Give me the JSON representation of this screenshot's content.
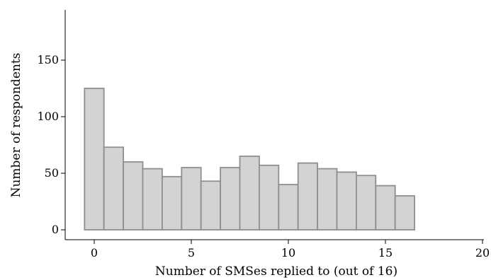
{
  "chart_data": {
    "type": "bar",
    "title": "",
    "xlabel": "Number of SMSes replied to (out of 16)",
    "ylabel": "Number of respondents",
    "categories": [
      0,
      1,
      2,
      3,
      4,
      5,
      6,
      7,
      8,
      9,
      10,
      11,
      12,
      13,
      14,
      15,
      16
    ],
    "values": [
      125,
      73,
      60,
      54,
      47,
      55,
      43,
      55,
      65,
      57,
      40,
      59,
      54,
      51,
      48,
      39,
      30
    ],
    "xlim": [
      -1.5,
      20
    ],
    "ylim": [
      0,
      160
    ],
    "xticks": [
      "0",
      "5",
      "10",
      "15",
      "20"
    ],
    "yticks": [
      "0",
      "50",
      "100",
      "150"
    ],
    "grid": false,
    "bar_color": "#d3d3d3",
    "bar_edge_color": "#8f8f8f"
  }
}
